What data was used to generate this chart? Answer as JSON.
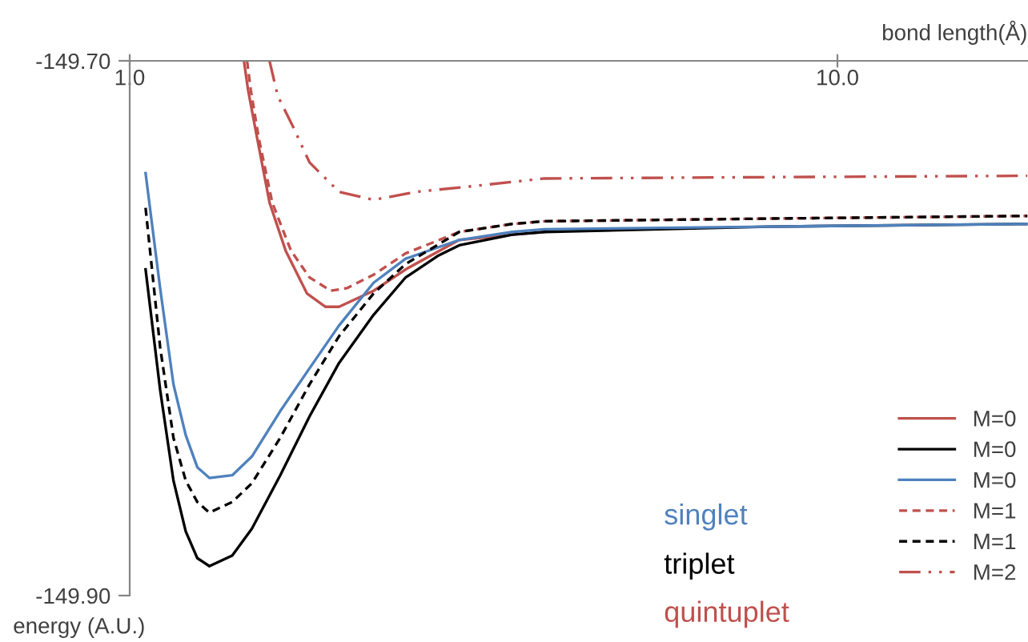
{
  "chart_data": {
    "type": "line",
    "xlabel": "bond length(Å)",
    "ylabel": "energy (A.U.)",
    "log": "x",
    "xlim": [
      1,
      18.56
    ],
    "xticks": [
      {
        "value": 1,
        "label": "1.0"
      },
      {
        "value": 10,
        "label": "10.0"
      }
    ],
    "ylim": [
      -149.9,
      -149.7
    ],
    "yticks": [
      {
        "value": -149.9,
        "label": "-149.90"
      },
      {
        "value": -149.7,
        "label": "-149.70"
      }
    ],
    "grid": false,
    "legend": "bottom right",
    "marker": "none",
    "annotations": [
      "singlet",
      "triplet",
      "quintuplet"
    ],
    "series": [
      {
        "name": "M=0",
        "color": "#c0504d",
        "line_style": "solid",
        "x": [
          1.45,
          1.47,
          1.509,
          1.576,
          1.661,
          1.78,
          1.891,
          1.976,
          2.211,
          2.454,
          2.921,
          3.473,
          3.855
        ],
        "values": [
          -149.7,
          -149.711,
          -149.727,
          -149.753,
          -149.771,
          -149.787,
          -149.792,
          -149.792,
          -149.786,
          -149.778,
          -149.767,
          -149.765,
          -149.764
        ]
      },
      {
        "name": "M=0",
        "color": "#000000",
        "line_style": "solid",
        "x": [
          1.053,
          1.104,
          1.153,
          1.2,
          1.246,
          1.296,
          1.396,
          1.488,
          1.632,
          1.795,
          1.976,
          2.211,
          2.454,
          2.723,
          2.921,
          3.473,
          3.855,
          7.99,
          18.56
        ],
        "values": [
          -149.778,
          -149.823,
          -149.857,
          -149.876,
          -149.886,
          -149.889,
          -149.885,
          -149.875,
          -149.855,
          -149.833,
          -149.813,
          -149.795,
          -149.781,
          -149.773,
          -149.769,
          -149.765,
          -149.764,
          -149.762,
          -149.761
        ]
      },
      {
        "name": "M=0",
        "color": "#4f81bd",
        "line_style": "solid",
        "x": [
          1.053,
          1.104,
          1.153,
          1.2,
          1.246,
          1.296,
          1.396,
          1.488,
          1.632,
          1.795,
          1.976,
          2.211,
          2.454,
          2.921,
          3.473,
          3.855,
          7.99,
          18.56
        ],
        "values": [
          -149.742,
          -149.785,
          -149.821,
          -149.84,
          -149.852,
          -149.856,
          -149.855,
          -149.848,
          -149.831,
          -149.815,
          -149.799,
          -149.783,
          -149.774,
          -149.767,
          -149.764,
          -149.763,
          -149.762,
          -149.761
        ]
      },
      {
        "name": "M=1",
        "color": "#c0504d",
        "line_style": "dashed",
        "x": [
          1.465,
          1.483,
          1.522,
          1.59,
          1.69,
          1.795,
          1.924,
          2.028,
          2.211,
          2.454,
          2.921,
          3.473,
          3.855,
          7.99,
          18.56
        ],
        "values": [
          -149.7,
          -149.711,
          -149.729,
          -149.753,
          -149.771,
          -149.781,
          -149.786,
          -149.785,
          -149.78,
          -149.772,
          -149.764,
          -149.761,
          -149.76,
          -149.759,
          -149.758
        ]
      },
      {
        "name": "M=1",
        "color": "#000000",
        "line_style": "dashed",
        "x": [
          1.053,
          1.104,
          1.153,
          1.2,
          1.246,
          1.296,
          1.396,
          1.488,
          1.632,
          1.795,
          1.976,
          2.211,
          2.454,
          2.921,
          3.473,
          3.855,
          7.99,
          18.56
        ],
        "values": [
          -149.755,
          -149.807,
          -149.841,
          -149.857,
          -149.865,
          -149.869,
          -149.865,
          -149.858,
          -149.841,
          -149.821,
          -149.803,
          -149.787,
          -149.776,
          -149.764,
          -149.761,
          -149.76,
          -149.759,
          -149.758
        ]
      },
      {
        "name": "M=2",
        "color": "#c0504d",
        "line_style": "dashdot",
        "x": [
          1.576,
          1.618,
          1.704,
          1.795,
          1.976,
          2.211,
          2.541,
          3.022,
          3.855,
          7.99,
          18.56
        ],
        "values": [
          -149.7,
          -149.713,
          -149.725,
          -149.738,
          -149.749,
          -149.752,
          -149.749,
          -149.747,
          -149.744,
          -149.7435,
          -149.743
        ]
      }
    ]
  }
}
